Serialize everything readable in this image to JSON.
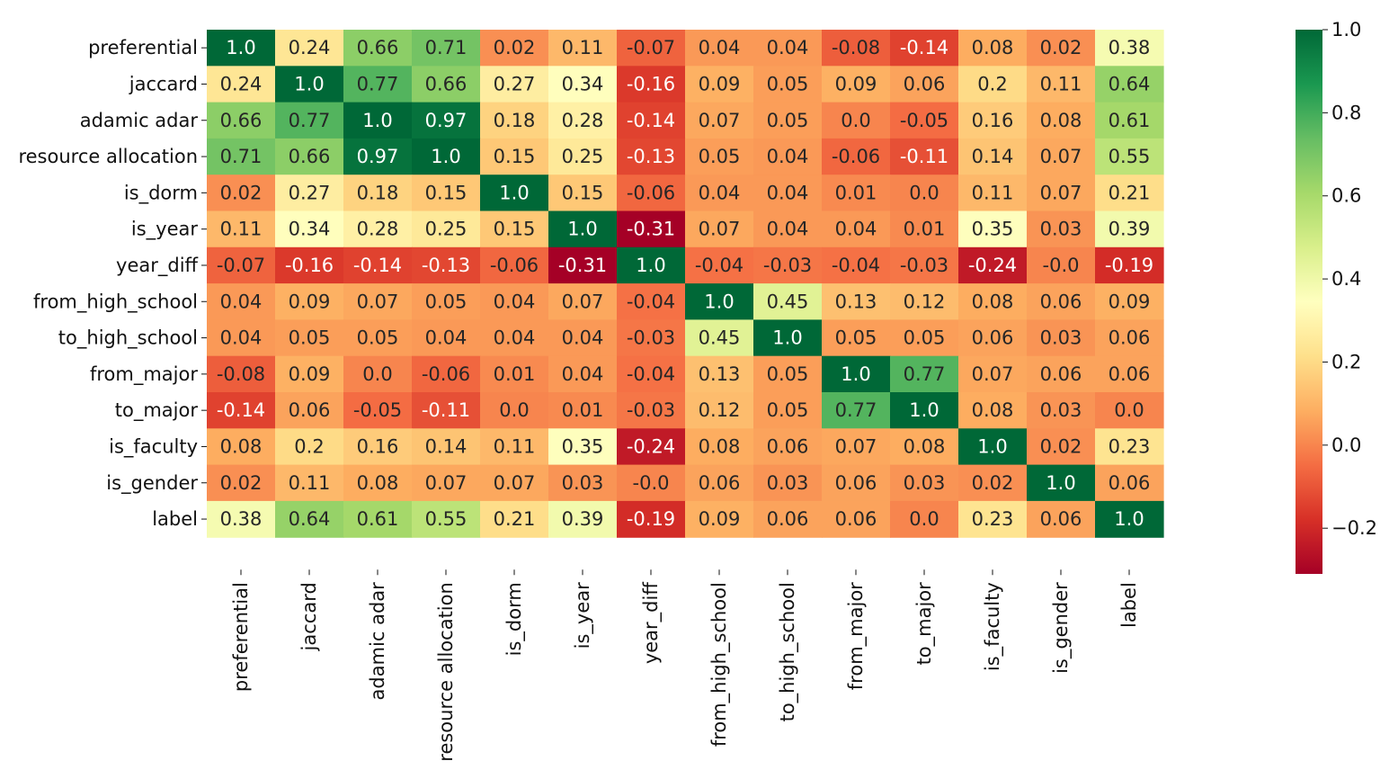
{
  "chart_data": {
    "type": "heatmap",
    "labels": [
      "preferential",
      "jaccard",
      "adamic adar",
      "resource allocation",
      "is_dorm",
      "is_year",
      "year_diff",
      "from_high_school",
      "to_high_school",
      "from_major",
      "to_major",
      "is_faculty",
      "is_gender",
      "label"
    ],
    "matrix": [
      [
        1.0,
        0.24,
        0.66,
        0.71,
        0.02,
        0.11,
        -0.07,
        0.04,
        0.04,
        -0.08,
        -0.14,
        0.08,
        0.02,
        0.38
      ],
      [
        0.24,
        1.0,
        0.77,
        0.66,
        0.27,
        0.34,
        -0.16,
        0.09,
        0.05,
        0.09,
        0.06,
        0.2,
        0.11,
        0.64
      ],
      [
        0.66,
        0.77,
        1.0,
        0.97,
        0.18,
        0.28,
        -0.14,
        0.07,
        0.05,
        0.0,
        -0.05,
        0.16,
        0.08,
        0.61
      ],
      [
        0.71,
        0.66,
        0.97,
        1.0,
        0.15,
        0.25,
        -0.13,
        0.05,
        0.04,
        -0.06,
        -0.11,
        0.14,
        0.07,
        0.55
      ],
      [
        0.02,
        0.27,
        0.18,
        0.15,
        1.0,
        0.15,
        -0.06,
        0.04,
        0.04,
        0.01,
        0.0,
        0.11,
        0.07,
        0.21
      ],
      [
        0.11,
        0.34,
        0.28,
        0.25,
        0.15,
        1.0,
        -0.31,
        0.07,
        0.04,
        0.04,
        0.01,
        0.35,
        0.03,
        0.39
      ],
      [
        -0.07,
        -0.16,
        -0.14,
        -0.13,
        -0.06,
        -0.31,
        1.0,
        -0.04,
        -0.03,
        -0.04,
        -0.03,
        -0.24,
        -0.0,
        -0.19
      ],
      [
        0.04,
        0.09,
        0.07,
        0.05,
        0.04,
        0.07,
        -0.04,
        1.0,
        0.45,
        0.13,
        0.12,
        0.08,
        0.06,
        0.09
      ],
      [
        0.04,
        0.05,
        0.05,
        0.04,
        0.04,
        0.04,
        -0.03,
        0.45,
        1.0,
        0.05,
        0.05,
        0.06,
        0.03,
        0.06
      ],
      [
        -0.08,
        0.09,
        0.0,
        -0.06,
        0.01,
        0.04,
        -0.04,
        0.13,
        0.05,
        1.0,
        0.77,
        0.07,
        0.06,
        0.06
      ],
      [
        -0.14,
        0.06,
        -0.05,
        -0.11,
        0.0,
        0.01,
        -0.03,
        0.12,
        0.05,
        0.77,
        1.0,
        0.08,
        0.03,
        0.0
      ],
      [
        0.08,
        0.2,
        0.16,
        0.14,
        0.11,
        0.35,
        -0.24,
        0.08,
        0.06,
        0.07,
        0.08,
        1.0,
        0.02,
        0.23
      ],
      [
        0.02,
        0.11,
        0.08,
        0.07,
        0.07,
        0.03,
        -0.0,
        0.06,
        0.03,
        0.06,
        0.03,
        0.02,
        1.0,
        0.06
      ],
      [
        0.38,
        0.64,
        0.61,
        0.55,
        0.21,
        0.39,
        -0.19,
        0.09,
        0.06,
        0.06,
        0.0,
        0.23,
        0.06,
        1.0
      ]
    ],
    "value_labels": [
      [
        "1.0",
        "0.24",
        "0.66",
        "0.71",
        "0.02",
        "0.11",
        "-0.07",
        "0.04",
        "0.04",
        "-0.08",
        "-0.14",
        "0.08",
        "0.02",
        "0.38"
      ],
      [
        "0.24",
        "1.0",
        "0.77",
        "0.66",
        "0.27",
        "0.34",
        "-0.16",
        "0.09",
        "0.05",
        "0.09",
        "0.06",
        "0.2",
        "0.11",
        "0.64"
      ],
      [
        "0.66",
        "0.77",
        "1.0",
        "0.97",
        "0.18",
        "0.28",
        "-0.14",
        "0.07",
        "0.05",
        "0.0",
        "-0.05",
        "0.16",
        "0.08",
        "0.61"
      ],
      [
        "0.71",
        "0.66",
        "0.97",
        "1.0",
        "0.15",
        "0.25",
        "-0.13",
        "0.05",
        "0.04",
        "-0.06",
        "-0.11",
        "0.14",
        "0.07",
        "0.55"
      ],
      [
        "0.02",
        "0.27",
        "0.18",
        "0.15",
        "1.0",
        "0.15",
        "-0.06",
        "0.04",
        "0.04",
        "0.01",
        "0.0",
        "0.11",
        "0.07",
        "0.21"
      ],
      [
        "0.11",
        "0.34",
        "0.28",
        "0.25",
        "0.15",
        "1.0",
        "-0.31",
        "0.07",
        "0.04",
        "0.04",
        "0.01",
        "0.35",
        "0.03",
        "0.39"
      ],
      [
        "-0.07",
        "-0.16",
        "-0.14",
        "-0.13",
        "-0.06",
        "-0.31",
        "1.0",
        "-0.04",
        "-0.03",
        "-0.04",
        "-0.03",
        "-0.24",
        "-0.0",
        "-0.19"
      ],
      [
        "0.04",
        "0.09",
        "0.07",
        "0.05",
        "0.04",
        "0.07",
        "-0.04",
        "1.0",
        "0.45",
        "0.13",
        "0.12",
        "0.08",
        "0.06",
        "0.09"
      ],
      [
        "0.04",
        "0.05",
        "0.05",
        "0.04",
        "0.04",
        "0.04",
        "-0.03",
        "0.45",
        "1.0",
        "0.05",
        "0.05",
        "0.06",
        "0.03",
        "0.06"
      ],
      [
        "-0.08",
        "0.09",
        "0.0",
        "-0.06",
        "0.01",
        "0.04",
        "-0.04",
        "0.13",
        "0.05",
        "1.0",
        "0.77",
        "0.07",
        "0.06",
        "0.06"
      ],
      [
        "-0.14",
        "0.06",
        "-0.05",
        "-0.11",
        "0.0",
        "0.01",
        "-0.03",
        "0.12",
        "0.05",
        "0.77",
        "1.0",
        "0.08",
        "0.03",
        "0.0"
      ],
      [
        "0.08",
        "0.2",
        "0.16",
        "0.14",
        "0.11",
        "0.35",
        "-0.24",
        "0.08",
        "0.06",
        "0.07",
        "0.08",
        "1.0",
        "0.02",
        "0.23"
      ],
      [
        "0.02",
        "0.11",
        "0.08",
        "0.07",
        "0.07",
        "0.03",
        "-0.0",
        "0.06",
        "0.03",
        "0.06",
        "0.03",
        "0.02",
        "1.0",
        "0.06"
      ],
      [
        "0.38",
        "0.64",
        "0.61",
        "0.55",
        "0.21",
        "0.39",
        "-0.19",
        "0.09",
        "0.06",
        "0.06",
        "0.0",
        "0.23",
        "0.06",
        "1.0"
      ]
    ],
    "color_range": [
      -0.31,
      1.0
    ],
    "colormap": "RdYlGn",
    "colorbar": {
      "ticks": [
        -0.2,
        0.0,
        0.2,
        0.4,
        0.6,
        0.8,
        1.0
      ],
      "tick_labels": [
        "−0.2",
        "0.0",
        "0.2",
        "0.4",
        "0.6",
        "0.8",
        "1.0"
      ],
      "placement": "right"
    },
    "title": "",
    "xlabel": "",
    "ylabel": "",
    "annotated": true,
    "grid": false
  }
}
